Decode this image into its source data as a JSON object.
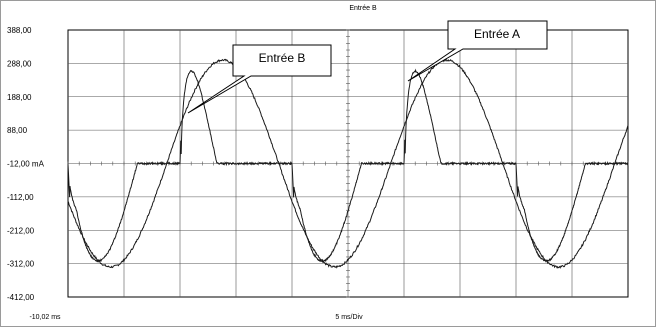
{
  "chart_data": {
    "type": "line",
    "title": "Entrée B",
    "xlabel": "5 ms/Div",
    "x_start_label": "-10,02 ms",
    "ylim": [
      -412,
      388
    ],
    "y_ticks": [
      {
        "value": 388,
        "label": "388,00"
      },
      {
        "value": 288,
        "label": "288,00"
      },
      {
        "value": 188,
        "label": "188,00"
      },
      {
        "value": 88,
        "label": "88,00"
      },
      {
        "value": -12,
        "label": "-12,00 mA"
      },
      {
        "value": -112,
        "label": "-112,00"
      },
      {
        "value": -212,
        "label": "-212,00"
      },
      {
        "value": -312,
        "label": "-312,00"
      },
      {
        "value": -412,
        "label": "-412,00"
      }
    ],
    "x_range_ms": [
      -10.02,
      39.98
    ],
    "x_div_ms": 5,
    "grid": true,
    "series": [
      {
        "name": "Entrée A",
        "shape": "sine",
        "amplitude": 310,
        "offset": -12,
        "period_ms": 20,
        "phase_ms": -1.2
      },
      {
        "name": "Entrée B",
        "shape": "pulse",
        "baseline": -12,
        "peak_positive": 265,
        "peak_negative": -310,
        "period_ms": 20
      }
    ],
    "annotations": [
      {
        "label": "Entrée B",
        "series": "Entrée B"
      },
      {
        "label": "Entrée A",
        "series": "Entrée A"
      }
    ]
  }
}
